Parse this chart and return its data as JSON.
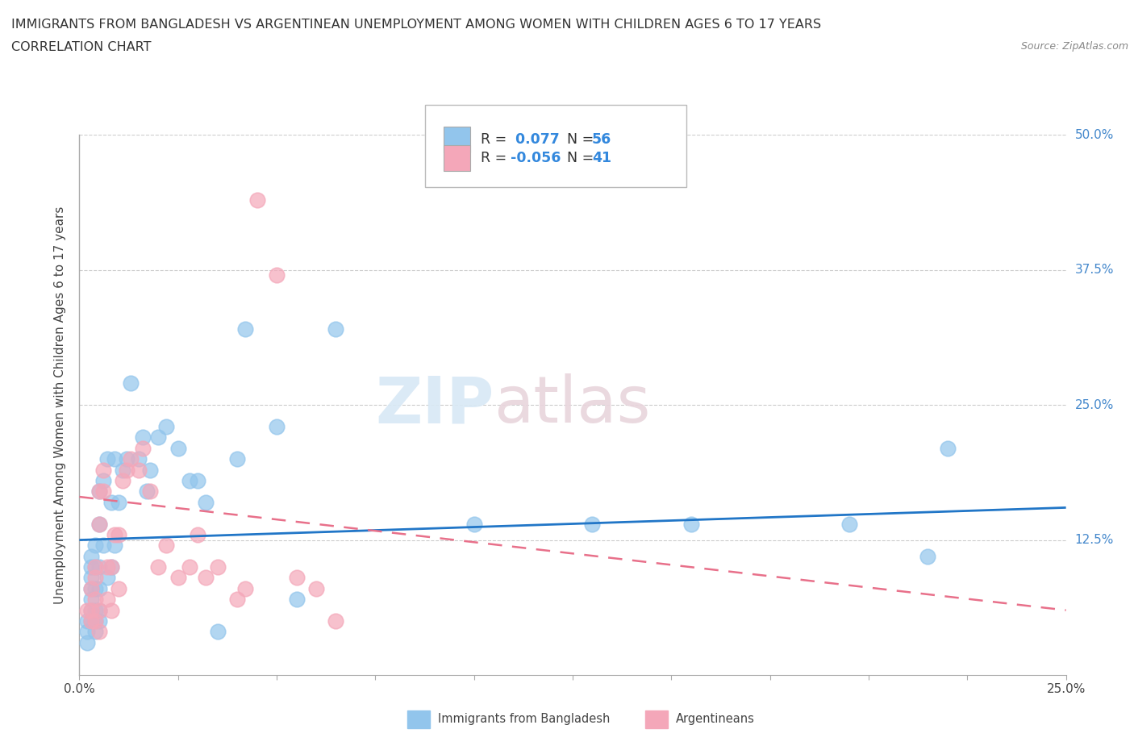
{
  "title_line1": "IMMIGRANTS FROM BANGLADESH VS ARGENTINEAN UNEMPLOYMENT AMONG WOMEN WITH CHILDREN AGES 6 TO 17 YEARS",
  "title_line2": "CORRELATION CHART",
  "source": "Source: ZipAtlas.com",
  "ylabel": "Unemployment Among Women with Children Ages 6 to 17 years",
  "xlim": [
    0.0,
    0.25
  ],
  "ylim": [
    0.0,
    0.5
  ],
  "blue_color": "#92C5EC",
  "pink_color": "#F4A7B9",
  "blue_line_color": "#2176C7",
  "pink_line_color": "#E8708A",
  "r_blue": 0.077,
  "n_blue": 56,
  "r_pink": -0.056,
  "n_pink": 41,
  "legend_label_blue": "Immigrants from Bangladesh",
  "legend_label_pink": "Argentineans",
  "watermark_zip": "ZIP",
  "watermark_atlas": "atlas",
  "blue_scatter_x": [
    0.002,
    0.002,
    0.002,
    0.003,
    0.003,
    0.003,
    0.003,
    0.003,
    0.003,
    0.003,
    0.004,
    0.004,
    0.004,
    0.004,
    0.004,
    0.004,
    0.005,
    0.005,
    0.005,
    0.005,
    0.005,
    0.005,
    0.006,
    0.006,
    0.007,
    0.007,
    0.008,
    0.008,
    0.009,
    0.009,
    0.01,
    0.011,
    0.012,
    0.013,
    0.015,
    0.016,
    0.017,
    0.018,
    0.02,
    0.022,
    0.025,
    0.028,
    0.03,
    0.032,
    0.035,
    0.04,
    0.042,
    0.05,
    0.055,
    0.065,
    0.1,
    0.13,
    0.155,
    0.195,
    0.215,
    0.22
  ],
  "blue_scatter_y": [
    0.03,
    0.04,
    0.05,
    0.05,
    0.06,
    0.07,
    0.08,
    0.09,
    0.1,
    0.11,
    0.04,
    0.05,
    0.06,
    0.08,
    0.1,
    0.12,
    0.05,
    0.06,
    0.08,
    0.1,
    0.14,
    0.17,
    0.12,
    0.18,
    0.09,
    0.2,
    0.1,
    0.16,
    0.12,
    0.2,
    0.16,
    0.19,
    0.2,
    0.27,
    0.2,
    0.22,
    0.17,
    0.19,
    0.22,
    0.23,
    0.21,
    0.18,
    0.18,
    0.16,
    0.04,
    0.2,
    0.32,
    0.23,
    0.07,
    0.32,
    0.14,
    0.14,
    0.14,
    0.14,
    0.11,
    0.21
  ],
  "pink_scatter_x": [
    0.002,
    0.003,
    0.003,
    0.003,
    0.004,
    0.004,
    0.004,
    0.004,
    0.005,
    0.005,
    0.005,
    0.005,
    0.006,
    0.006,
    0.007,
    0.007,
    0.008,
    0.008,
    0.009,
    0.01,
    0.01,
    0.011,
    0.012,
    0.013,
    0.015,
    0.016,
    0.018,
    0.02,
    0.022,
    0.025,
    0.028,
    0.03,
    0.032,
    0.035,
    0.04,
    0.042,
    0.045,
    0.05,
    0.055,
    0.06,
    0.065
  ],
  "pink_scatter_y": [
    0.06,
    0.05,
    0.06,
    0.08,
    0.05,
    0.07,
    0.09,
    0.1,
    0.04,
    0.06,
    0.14,
    0.17,
    0.17,
    0.19,
    0.07,
    0.1,
    0.06,
    0.1,
    0.13,
    0.08,
    0.13,
    0.18,
    0.19,
    0.2,
    0.19,
    0.21,
    0.17,
    0.1,
    0.12,
    0.09,
    0.1,
    0.13,
    0.09,
    0.1,
    0.07,
    0.08,
    0.44,
    0.37,
    0.09,
    0.08,
    0.05
  ],
  "blue_trend_x0": 0.0,
  "blue_trend_y0": 0.125,
  "blue_trend_x1": 0.25,
  "blue_trend_y1": 0.155,
  "pink_trend_x0": 0.0,
  "pink_trend_y0": 0.165,
  "pink_trend_x1": 0.25,
  "pink_trend_y1": 0.06
}
